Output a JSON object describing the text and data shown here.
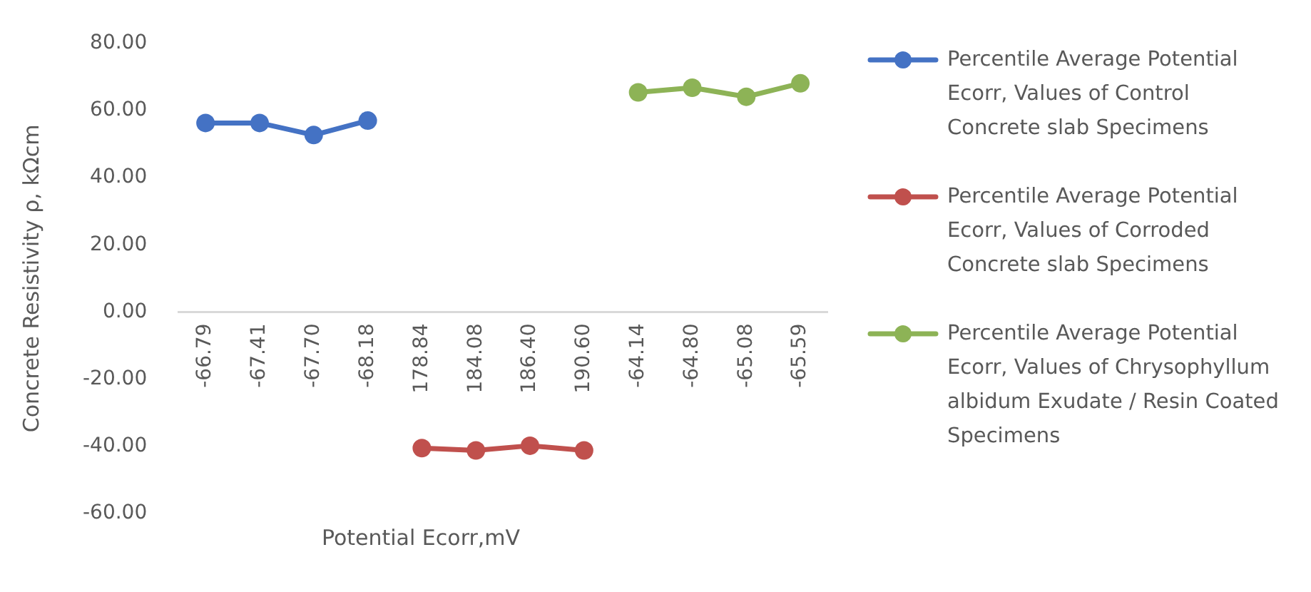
{
  "chart_data": {
    "type": "line",
    "xlabel": "Potential Ecorr,mV",
    "ylabel": "Concrete Resistivity ρ, kΩcm",
    "categories": [
      "-66.79",
      "-67.41",
      "-67.70",
      "-68.18",
      "178.84",
      "184.08",
      "186.40",
      "190.60",
      "-64.14",
      "-64.80",
      "-65.08",
      "-65.59"
    ],
    "series": [
      {
        "name": "Percentile Average Potential Ecorr, Values of Control Concrete slab Specimens",
        "color": "#4472c4",
        "values": [
          56.3,
          56.3,
          52.7,
          57.0,
          null,
          null,
          null,
          null,
          null,
          null,
          null,
          null
        ]
      },
      {
        "name": "Percentile Average Potential Ecorr, Values of Corroded Concrete slab Specimens",
        "color": "#c0504d",
        "values": [
          null,
          null,
          null,
          null,
          -40.5,
          -41.2,
          -39.8,
          -41.2,
          null,
          null,
          null,
          null
        ]
      },
      {
        "name": "Percentile Average Potential Ecorr, Values of Chrysophyllum albidum Exudate / Resin Coated Specimens",
        "color": "#8db356",
        "values": [
          null,
          null,
          null,
          null,
          null,
          null,
          null,
          null,
          65.4,
          66.8,
          64.1,
          68.1
        ]
      }
    ],
    "ylim": [
      -60,
      80
    ],
    "yticks": [
      {
        "value": -60,
        "label": "-60.00"
      },
      {
        "value": -40,
        "label": "-40.00"
      },
      {
        "value": -20,
        "label": "-20.00"
      },
      {
        "value": 0,
        "label": "0.00"
      },
      {
        "value": 20,
        "label": "20.00"
      },
      {
        "value": 40,
        "label": "40.00"
      },
      {
        "value": 60,
        "label": "60.00"
      },
      {
        "value": 80,
        "label": "80.00"
      }
    ],
    "grid": false,
    "legend": "right",
    "marker": "circle",
    "line_style": "solid"
  }
}
